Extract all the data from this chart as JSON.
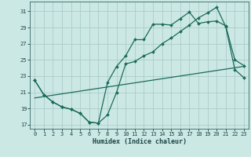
{
  "title": "",
  "xlabel": "Humidex (Indice chaleur)",
  "background_color": "#cce8e4",
  "grid_color": "#aacccc",
  "line_color": "#1a6b5a",
  "xlim": [
    -0.5,
    23.5
  ],
  "ylim": [
    16.5,
    32.2
  ],
  "xticks": [
    0,
    1,
    2,
    3,
    4,
    5,
    6,
    7,
    8,
    9,
    10,
    11,
    12,
    13,
    14,
    15,
    16,
    17,
    18,
    19,
    20,
    21,
    22,
    23
  ],
  "yticks": [
    17,
    19,
    21,
    23,
    25,
    27,
    29,
    31
  ],
  "line1_x": [
    0,
    1,
    2,
    3,
    4,
    5,
    6,
    7,
    8,
    9,
    10,
    11,
    12,
    13,
    14,
    15,
    16,
    17,
    18,
    19,
    20,
    21,
    22,
    23
  ],
  "line1_y": [
    22.5,
    20.7,
    19.8,
    19.2,
    18.9,
    18.4,
    17.3,
    17.2,
    22.2,
    24.2,
    25.5,
    27.5,
    27.5,
    29.4,
    29.4,
    29.3,
    30.1,
    30.9,
    29.5,
    29.7,
    29.8,
    29.2,
    25.0,
    24.3
  ],
  "line2_x": [
    0,
    1,
    2,
    3,
    4,
    5,
    6,
    7,
    8,
    9,
    10,
    11,
    12,
    13,
    14,
    15,
    16,
    17,
    18,
    19,
    20,
    21,
    22,
    23
  ],
  "line2_y": [
    22.5,
    20.7,
    19.8,
    19.2,
    18.9,
    18.4,
    17.3,
    17.2,
    18.2,
    21.0,
    24.5,
    24.8,
    25.5,
    26.0,
    27.0,
    27.7,
    28.5,
    29.3,
    30.2,
    30.8,
    31.5,
    29.1,
    23.8,
    22.8
  ],
  "line3_x": [
    0,
    23
  ],
  "line3_y": [
    20.3,
    24.2
  ]
}
